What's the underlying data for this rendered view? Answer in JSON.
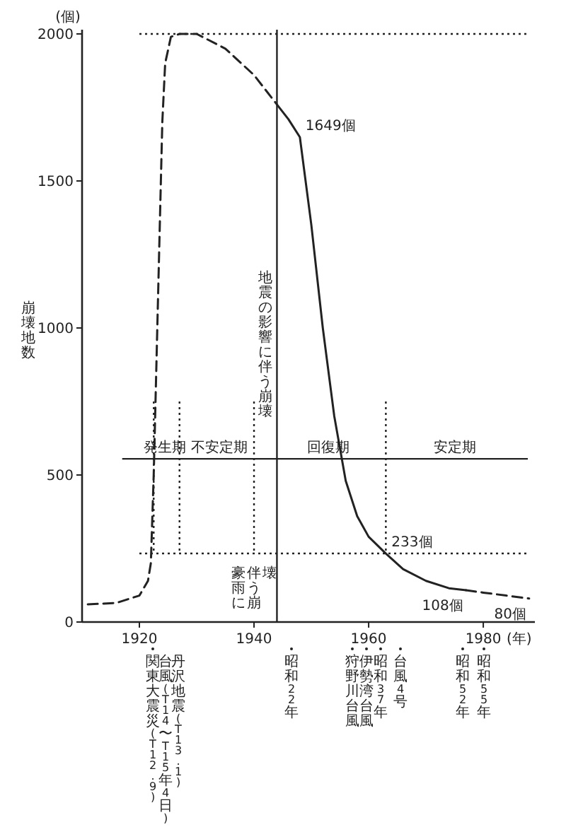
{
  "chart_data": {
    "type": "line",
    "ylabel": "崩壊地数",
    "xlim": [
      1910,
      1989
    ],
    "ylim": [
      0,
      2000
    ],
    "xticks": [
      1920,
      1940,
      1960,
      1980
    ],
    "yticks": [
      0,
      500,
      1000,
      1500,
      2000
    ],
    "grid": false,
    "series": [
      {
        "color": "#222222",
        "line_style": "dashed",
        "x": [
          1911,
          1916,
          1920,
          1921.5,
          1922,
          1922.5,
          1923,
          1923.5,
          1924,
          1924.5,
          1925.5,
          1927,
          1930,
          1935,
          1940,
          1944
        ],
        "values": [
          60,
          65,
          90,
          140,
          200,
          500,
          900,
          1300,
          1700,
          1900,
          1990,
          2000,
          2000,
          1950,
          1860,
          1760
        ]
      },
      {
        "color": "#222222",
        "line_style": "solid",
        "x": [
          1944,
          1946,
          1948,
          1950,
          1952,
          1954,
          1956,
          1958,
          1960,
          1963,
          1966,
          1970,
          1974,
          1977
        ],
        "values": [
          1760,
          1710,
          1649,
          1350,
          1000,
          700,
          480,
          360,
          290,
          233,
          180,
          140,
          115,
          108
        ],
        "value_labels": [
          null,
          null,
          "1649個",
          null,
          null,
          null,
          null,
          null,
          null,
          "233個",
          null,
          null,
          null,
          "108個"
        ]
      },
      {
        "color": "#222222",
        "line_style": "dashed",
        "x": [
          1977,
          1980,
          1984,
          1988
        ],
        "values": [
          108,
          100,
          90,
          80
        ],
        "value_labels": [
          null,
          null,
          null,
          "80個"
        ]
      }
    ],
    "ref_lines": [
      {
        "axis": "y",
        "value": 2000,
        "line_style": "dotted"
      },
      {
        "axis": "y",
        "value": 233,
        "line_style": "dotted"
      },
      {
        "axis": "y",
        "value": 555,
        "line_style": "solid"
      },
      {
        "axis": "x",
        "value": 1922.5,
        "line_style": "dotted"
      },
      {
        "axis": "x",
        "value": 1927,
        "line_style": "dotted"
      },
      {
        "axis": "x",
        "value": 1940,
        "line_style": "dotted"
      },
      {
        "axis": "x",
        "value": 1963,
        "line_style": "dotted"
      },
      {
        "axis": "x",
        "value": 1944,
        "line_style": "solid",
        "label": "地震の影響に伴う崩壊"
      }
    ],
    "annotations": [
      "(個)",
      "(年)",
      "豪雨に伴う崩壊",
      "関東大震災(T12.9)",
      "台風(T14〜T15年4日)",
      "丹沢地震(T13.1)",
      "昭和22年",
      "狩野川台風",
      "伊勢湾台風",
      "昭和37年",
      "台風4号",
      "昭和52年",
      "昭和55年",
      {
        "text": "発生期",
        "x": 1924.5,
        "y": 555
      },
      {
        "text": "不安定期",
        "x": 1934,
        "y": 555
      },
      {
        "text": "回復期",
        "x": 1953,
        "y": 555
      },
      {
        "text": "安定期",
        "x": 1975,
        "y": 555
      }
    ]
  }
}
